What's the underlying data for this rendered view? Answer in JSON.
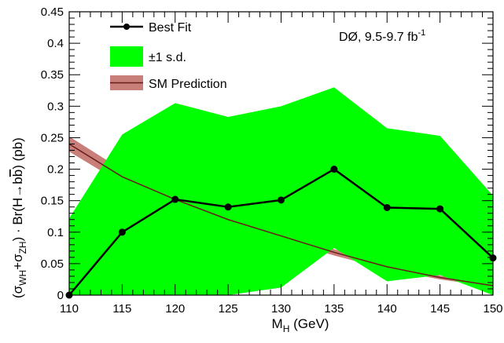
{
  "chart_data": {
    "type": "line",
    "x": [
      110,
      115,
      120,
      125,
      130,
      135,
      140,
      145,
      150
    ],
    "xlim": [
      110,
      150
    ],
    "ylim": [
      0,
      0.45
    ],
    "x_ticks": [
      "110",
      "115",
      "120",
      "125",
      "130",
      "135",
      "140",
      "145",
      "150"
    ],
    "y_ticks": [
      "0",
      "0.05",
      "0.1",
      "0.15",
      "0.2",
      "0.25",
      "0.3",
      "0.35",
      "0.4",
      "0.45"
    ],
    "xlabel": {
      "main": "M",
      "sub": "H",
      "rest": " (GeV)"
    },
    "ylabel": {
      "p1": "(σ",
      "s1": "WH",
      "p2": "+σ",
      "s2": "ZH",
      "p3": ") · Br(H→b",
      "bbar": "b",
      "p4": ") (pb)"
    },
    "annotation": {
      "text": "DØ, 9.5-9.7 fb",
      "sup": "-1"
    },
    "series": [
      {
        "name": "Best Fit",
        "kind": "line-markers",
        "color": "#000000",
        "values": [
          0.0,
          0.1,
          0.152,
          0.14,
          0.151,
          0.2,
          0.139,
          0.137,
          0.059
        ]
      },
      {
        "name": "±1 s.d.",
        "kind": "band",
        "color": "#00ff00",
        "lower": [
          0.0,
          0.0,
          0.0,
          0.0,
          0.012,
          0.075,
          0.022,
          0.032,
          0.0
        ],
        "upper": [
          0.122,
          0.255,
          0.305,
          0.283,
          0.3,
          0.33,
          0.265,
          0.253,
          0.158
        ]
      },
      {
        "name": "SM Prediction",
        "kind": "band-with-line",
        "band_color": "#c87f7a",
        "line_color": "#6b1a1a",
        "center": [
          0.24,
          0.188,
          0.152,
          0.12,
          0.094,
          0.068,
          0.045,
          0.028,
          0.015
        ],
        "lower": [
          0.228,
          0.177,
          0.143,
          0.113,
          0.088,
          0.063,
          0.041,
          0.025,
          0.013
        ],
        "upper": [
          0.252,
          0.199,
          0.161,
          0.127,
          0.1,
          0.073,
          0.049,
          0.031,
          0.017
        ]
      }
    ],
    "legend_position": "top-left"
  }
}
